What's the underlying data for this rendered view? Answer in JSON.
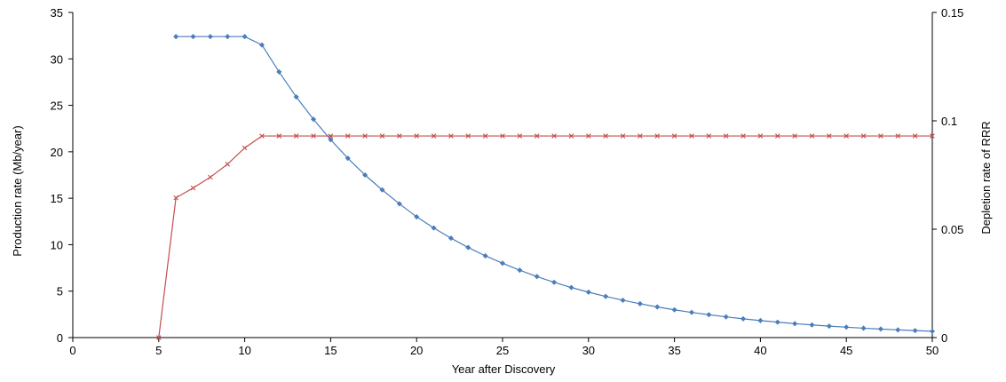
{
  "chart_data": {
    "type": "line",
    "title": "",
    "xlabel": "Year after Discovery",
    "ylabel": "Production rate (Mb/year)",
    "y2label": "Depletion rate of RRR",
    "xlim": [
      0,
      50
    ],
    "ylim": [
      0,
      35
    ],
    "y2lim": [
      0,
      0.15
    ],
    "xticks": [
      "0",
      "5",
      "10",
      "15",
      "20",
      "25",
      "30",
      "35",
      "40",
      "45",
      "50"
    ],
    "yticks": [
      "0",
      "5",
      "10",
      "15",
      "20",
      "25",
      "30",
      "35"
    ],
    "y2ticks": [
      "0",
      "0.05",
      "0.1",
      "0.15"
    ],
    "grid": false,
    "legend": false,
    "series": [
      {
        "axis": "left",
        "color": "#4a7ebb",
        "marker": "diamond",
        "x": [
          6,
          7,
          8,
          9,
          10,
          11,
          12,
          13,
          14,
          15,
          16,
          17,
          18,
          19,
          20,
          21,
          22,
          23,
          24,
          25,
          26,
          27,
          28,
          29,
          30,
          31,
          32,
          33,
          34,
          35,
          36,
          37,
          38,
          39,
          40,
          41,
          42,
          43,
          44,
          45,
          46,
          47,
          48,
          49,
          50
        ],
        "values": [
          32.4,
          32.4,
          32.4,
          32.4,
          32.4,
          31.5,
          28.6,
          25.9,
          23.5,
          21.3,
          19.3,
          17.5,
          15.9,
          14.4,
          13.0,
          11.8,
          10.7,
          9.7,
          8.8,
          8.0,
          7.25,
          6.57,
          5.95,
          5.39,
          4.89,
          4.43,
          4.02,
          3.64,
          3.3,
          2.99,
          2.71,
          2.46,
          2.23,
          2.02,
          1.83,
          1.66,
          1.5,
          1.36,
          1.23,
          1.12,
          1.01,
          0.92,
          0.83,
          0.75,
          0.68
        ]
      },
      {
        "axis": "right",
        "color": "#c0504d",
        "marker": "x",
        "x": [
          5,
          6,
          7,
          8,
          9,
          10,
          11,
          12,
          13,
          14,
          15,
          16,
          17,
          18,
          19,
          20,
          21,
          22,
          23,
          24,
          25,
          26,
          27,
          28,
          29,
          30,
          31,
          32,
          33,
          34,
          35,
          36,
          37,
          38,
          39,
          40,
          41,
          42,
          43,
          44,
          45,
          46,
          47,
          48,
          49,
          50
        ],
        "values": [
          0,
          0.0645,
          0.069,
          0.074,
          0.08,
          0.0875,
          0.093,
          0.093,
          0.093,
          0.093,
          0.093,
          0.093,
          0.093,
          0.093,
          0.093,
          0.093,
          0.093,
          0.093,
          0.093,
          0.093,
          0.093,
          0.093,
          0.093,
          0.093,
          0.093,
          0.093,
          0.093,
          0.093,
          0.093,
          0.093,
          0.093,
          0.093,
          0.093,
          0.093,
          0.093,
          0.093,
          0.093,
          0.093,
          0.093,
          0.093,
          0.093,
          0.093,
          0.093,
          0.093,
          0.093,
          0.093
        ]
      }
    ]
  }
}
